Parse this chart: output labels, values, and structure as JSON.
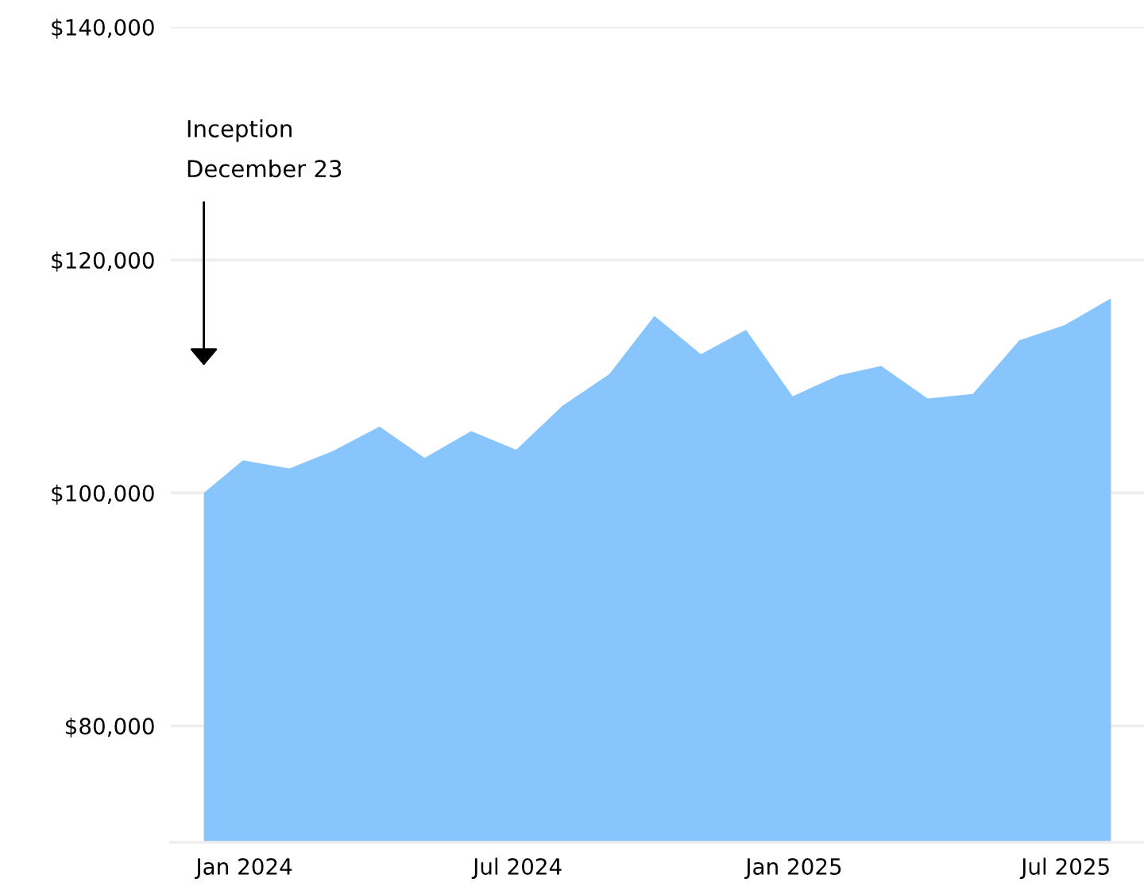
{
  "chart_data": {
    "type": "area",
    "x": [
      "2023-12-05",
      "2023-12-31",
      "2024-01-31",
      "2024-02-29",
      "2024-03-31",
      "2024-04-30",
      "2024-05-31",
      "2024-06-30",
      "2024-07-31",
      "2024-08-31",
      "2024-09-30",
      "2024-10-31",
      "2024-11-30",
      "2024-12-31",
      "2025-01-31",
      "2025-02-28",
      "2025-03-31",
      "2025-04-30",
      "2025-05-31",
      "2025-06-30",
      "2025-07-31"
    ],
    "series": [
      {
        "color": "#88c5fc",
        "values": [
          100000,
          102800,
          102100,
          103600,
          105700,
          103000,
          105300,
          103700,
          107500,
          110200,
          115200,
          111900,
          114000,
          108300,
          110100,
          110900,
          108100,
          108500,
          113100,
          114400,
          116700
        ]
      }
    ],
    "xlim": [
      "2023-11-13",
      "2025-08-22"
    ],
    "xticks": [
      {
        "value": "2024-01-01",
        "label": "Jan 2024"
      },
      {
        "value": "2024-07-01",
        "label": "Jul 2024"
      },
      {
        "value": "2025-01-01",
        "label": "Jan 2025"
      },
      {
        "value": "2025-07-01",
        "label": "Jul 2025"
      }
    ],
    "ylim": [
      70000,
      140000
    ],
    "yticks": [
      {
        "value": 80000,
        "label": "$80,000"
      },
      {
        "value": 100000,
        "label": "$100,000"
      },
      {
        "value": 120000,
        "label": "$120,000"
      },
      {
        "value": 140000,
        "label": "$140,000"
      }
    ],
    "grid": "y",
    "annotations": [
      "Inception\nDecember 23"
    ]
  }
}
